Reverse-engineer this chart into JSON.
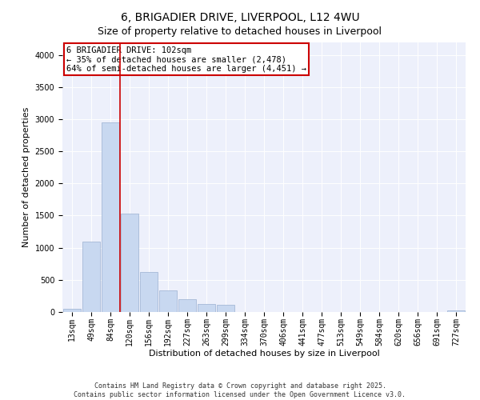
{
  "title1": "6, BRIGADIER DRIVE, LIVERPOOL, L12 4WU",
  "title2": "Size of property relative to detached houses in Liverpool",
  "xlabel": "Distribution of detached houses by size in Liverpool",
  "ylabel": "Number of detached properties",
  "categories": [
    "13sqm",
    "49sqm",
    "84sqm",
    "120sqm",
    "156sqm",
    "192sqm",
    "227sqm",
    "263sqm",
    "299sqm",
    "334sqm",
    "370sqm",
    "406sqm",
    "441sqm",
    "477sqm",
    "513sqm",
    "549sqm",
    "584sqm",
    "620sqm",
    "656sqm",
    "691sqm",
    "727sqm"
  ],
  "values": [
    50,
    1100,
    2950,
    1530,
    620,
    330,
    195,
    120,
    110,
    0,
    0,
    0,
    0,
    0,
    0,
    0,
    0,
    0,
    0,
    0,
    30
  ],
  "bar_color": "#c8d8f0",
  "bar_edge_color": "#9ab0d0",
  "vline_x_index": 2.52,
  "vline_color": "#cc0000",
  "annotation_text": "6 BRIGADIER DRIVE: 102sqm\n← 35% of detached houses are smaller (2,478)\n64% of semi-detached houses are larger (4,451) →",
  "annotation_box_color": "#ffffff",
  "annotation_box_edge": "#cc0000",
  "ylim": [
    0,
    4200
  ],
  "yticks": [
    0,
    500,
    1000,
    1500,
    2000,
    2500,
    3000,
    3500,
    4000
  ],
  "bg_color": "#edf0fb",
  "footer": "Contains HM Land Registry data © Crown copyright and database right 2025.\nContains public sector information licensed under the Open Government Licence v3.0.",
  "title_fontsize": 10,
  "subtitle_fontsize": 9,
  "axis_label_fontsize": 8,
  "tick_fontsize": 7,
  "annotation_fontsize": 7.5,
  "footer_fontsize": 6
}
